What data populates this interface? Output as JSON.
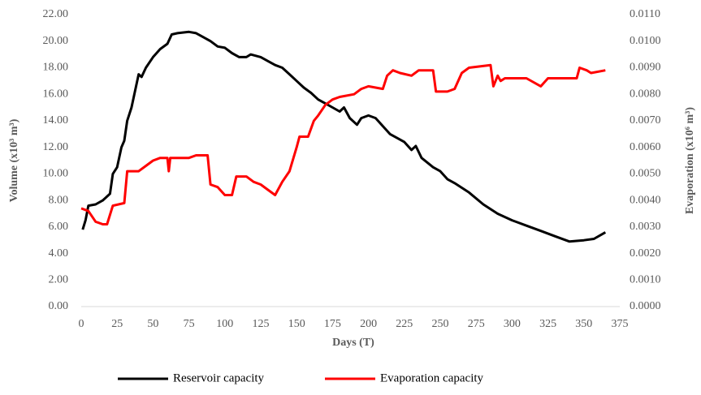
{
  "chart_data": {
    "type": "line",
    "xlabel": "Days (T)",
    "ylabel": "Volume (x10³ m³)",
    "y2label": "Evaporation (x10⁶ m³)",
    "xlim": [
      0,
      375
    ],
    "xticks": [
      0,
      25,
      50,
      75,
      100,
      125,
      150,
      175,
      200,
      225,
      250,
      275,
      300,
      325,
      350,
      375
    ],
    "ylim": [
      0,
      22
    ],
    "yticks": [
      {
        "value": 0,
        "label": "0.00"
      },
      {
        "value": 2,
        "label": "2.00"
      },
      {
        "value": 4,
        "label": "4.00"
      },
      {
        "value": 6,
        "label": "6.00"
      },
      {
        "value": 8,
        "label": "8.00"
      },
      {
        "value": 10,
        "label": "10.00"
      },
      {
        "value": 12,
        "label": "12.00"
      },
      {
        "value": 14,
        "label": "14.00"
      },
      {
        "value": 16,
        "label": "16.00"
      },
      {
        "value": 18,
        "label": "18.00"
      },
      {
        "value": 20,
        "label": "20.00"
      },
      {
        "value": 22,
        "label": "22.00"
      }
    ],
    "y2lim": [
      0,
      0.011
    ],
    "y2ticks": [
      {
        "value": 0,
        "label": "0.0000"
      },
      {
        "value": 0.001,
        "label": "0.0010"
      },
      {
        "value": 0.002,
        "label": "0.0020"
      },
      {
        "value": 0.003,
        "label": "0.0030"
      },
      {
        "value": 0.004,
        "label": "0.0040"
      },
      {
        "value": 0.005,
        "label": "0.0050"
      },
      {
        "value": 0.006,
        "label": "0.0060"
      },
      {
        "value": 0.007,
        "label": "0.0070"
      },
      {
        "value": 0.008,
        "label": "0.0080"
      },
      {
        "value": 0.009,
        "label": "0.0090"
      },
      {
        "value": 0.01,
        "label": "0.0100"
      },
      {
        "value": 0.011,
        "label": "0.0110"
      }
    ],
    "legend": "bottom",
    "series": [
      {
        "name": "Reservoir capacity",
        "color": "#000000",
        "axis": "y",
        "x": [
          1,
          3,
          5,
          10,
          15,
          20,
          22,
          25,
          28,
          30,
          32,
          35,
          37,
          40,
          42,
          45,
          50,
          55,
          60,
          63,
          67,
          75,
          80,
          85,
          90,
          95,
          100,
          105,
          110,
          115,
          118,
          125,
          130,
          135,
          140,
          145,
          150,
          155,
          160,
          165,
          170,
          175,
          180,
          183,
          187,
          192,
          195,
          200,
          205,
          210,
          215,
          220,
          225,
          230,
          233,
          237,
          245,
          250,
          255,
          260,
          270,
          280,
          290,
          300,
          310,
          320,
          330,
          340,
          350,
          357,
          365
        ],
        "values": [
          5.8,
          6.5,
          7.6,
          7.7,
          8.0,
          8.5,
          10.0,
          10.5,
          12.0,
          12.5,
          14.0,
          15.0,
          16.0,
          17.5,
          17.3,
          18.0,
          18.8,
          19.4,
          19.8,
          20.5,
          20.6,
          20.7,
          20.6,
          20.3,
          20.0,
          19.6,
          19.5,
          19.1,
          18.8,
          18.8,
          19.0,
          18.8,
          18.5,
          18.2,
          18.0,
          17.5,
          17.0,
          16.5,
          16.1,
          15.6,
          15.3,
          15.0,
          14.7,
          15.0,
          14.2,
          13.7,
          14.2,
          14.4,
          14.2,
          13.6,
          13.0,
          12.7,
          12.4,
          11.8,
          12.1,
          11.2,
          10.5,
          10.2,
          9.6,
          9.3,
          8.6,
          7.7,
          7.0,
          6.5,
          6.1,
          5.7,
          5.3,
          4.9,
          5.0,
          5.1,
          5.6
        ]
      },
      {
        "name": "Evaporation capacity",
        "color": "#ff0000",
        "axis": "y2",
        "x": [
          0,
          5,
          10,
          15,
          18,
          22,
          30,
          32,
          40,
          45,
          50,
          55,
          60,
          61,
          62,
          75,
          80,
          88,
          90,
          95,
          100,
          105,
          108,
          115,
          120,
          125,
          130,
          135,
          140,
          145,
          150,
          152,
          158,
          162,
          165,
          170,
          175,
          180,
          190,
          195,
          200,
          210,
          213,
          217,
          222,
          230,
          235,
          245,
          247,
          255,
          260,
          265,
          270,
          285,
          287,
          290,
          292,
          295,
          310,
          320,
          325,
          345,
          347,
          352,
          355,
          365
        ],
        "values": [
          0.0037,
          0.0036,
          0.0032,
          0.0031,
          0.0031,
          0.0038,
          0.0039,
          0.0051,
          0.0051,
          0.0053,
          0.0055,
          0.0056,
          0.0056,
          0.0051,
          0.0056,
          0.0056,
          0.0057,
          0.0057,
          0.0046,
          0.0045,
          0.0042,
          0.0042,
          0.0049,
          0.0049,
          0.0047,
          0.0046,
          0.0044,
          0.0042,
          0.0047,
          0.0051,
          0.006,
          0.0064,
          0.0064,
          0.007,
          0.0072,
          0.0076,
          0.0078,
          0.0079,
          0.008,
          0.0082,
          0.0083,
          0.0082,
          0.0087,
          0.0089,
          0.0088,
          0.0087,
          0.0089,
          0.0089,
          0.0081,
          0.0081,
          0.0082,
          0.0088,
          0.009,
          0.0091,
          0.0083,
          0.0087,
          0.0085,
          0.0086,
          0.0086,
          0.0083,
          0.0086,
          0.0086,
          0.009,
          0.0089,
          0.0088,
          0.0089
        ]
      }
    ]
  }
}
